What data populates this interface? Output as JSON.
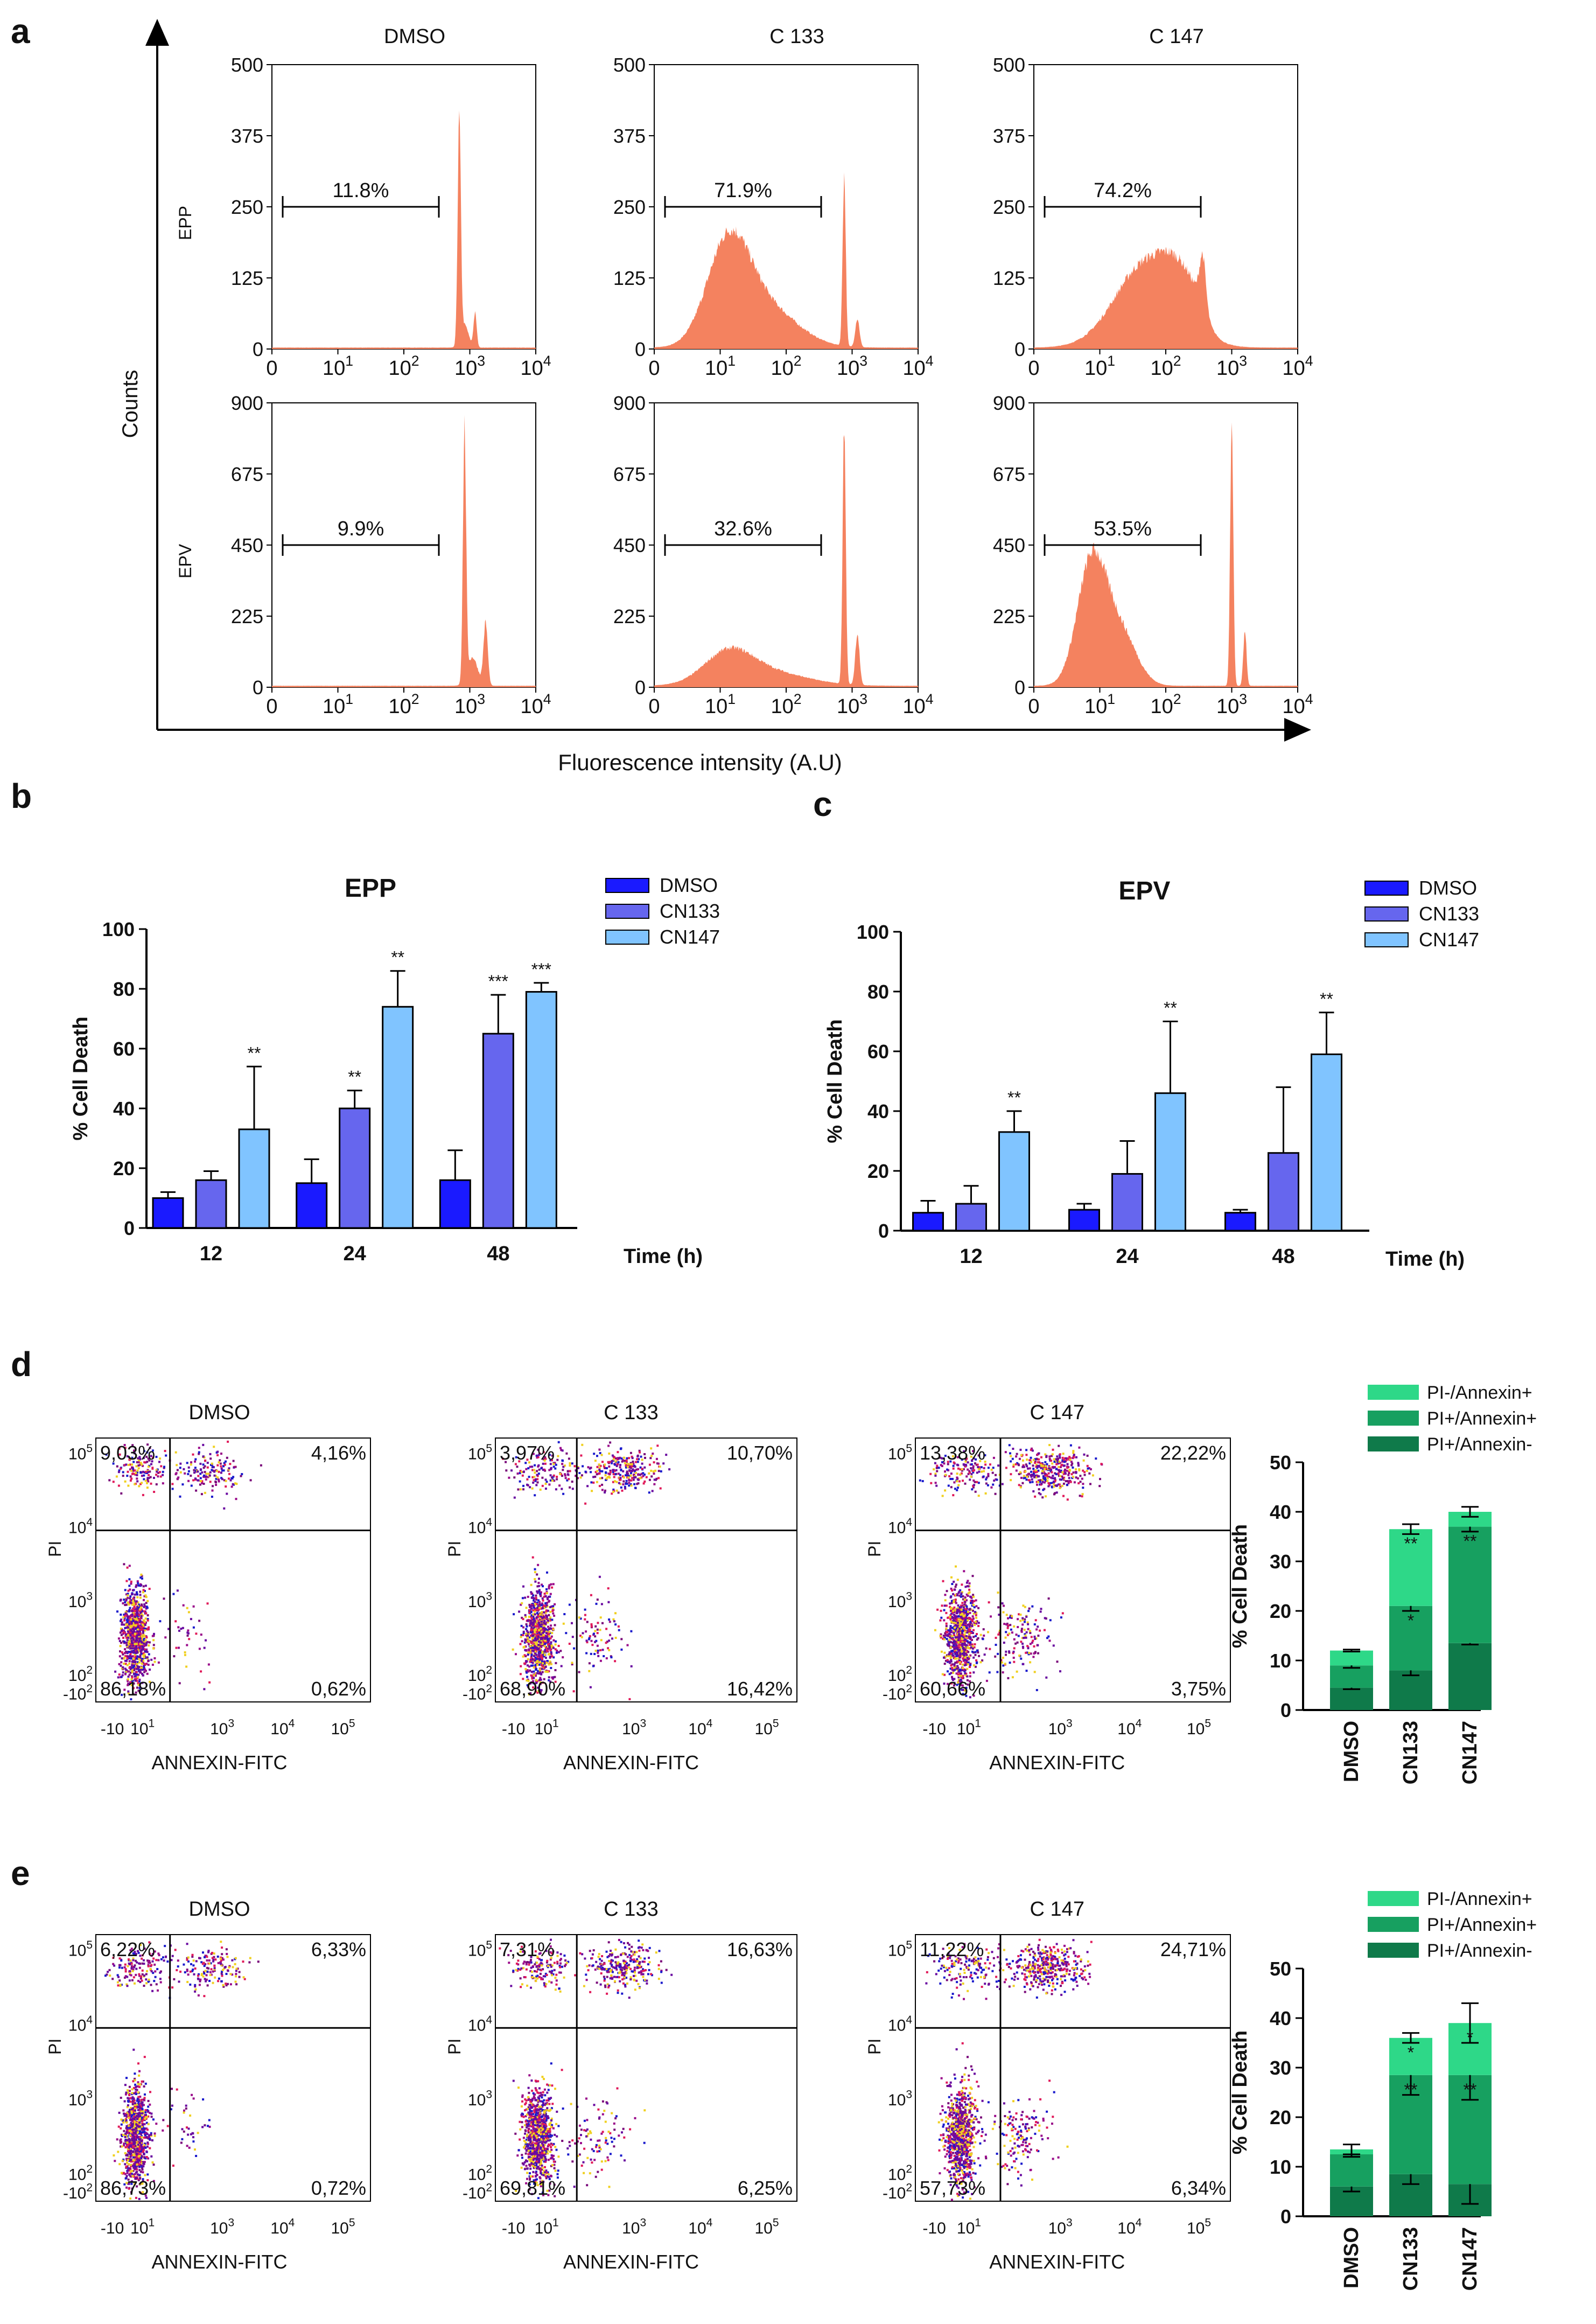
{
  "panel_letters": [
    "a",
    "b",
    "c",
    "d",
    "e"
  ],
  "panel_a": {
    "counts_label": "Counts",
    "fluorescence_label": "Fluorescence intensity (A.U)",
    "row_labels": [
      "EPP",
      "EPV"
    ],
    "col_titles": [
      "DMSO",
      "C 133",
      "C 147"
    ],
    "x_ticks": [
      {
        "base": "0",
        "exp": ""
      },
      {
        "base": "10",
        "exp": "1"
      },
      {
        "base": "10",
        "exp": "2"
      },
      {
        "base": "10",
        "exp": "3"
      },
      {
        "base": "10",
        "exp": "4"
      }
    ],
    "y_ticks_epp": [
      "0",
      "125",
      "250",
      "375",
      "500"
    ],
    "y_ticks_epv": [
      "0",
      "225",
      "450",
      "675",
      "900"
    ],
    "gates_epp": [
      "11.8%",
      "71.9%",
      "74.2%"
    ],
    "gates_epv": [
      "9.9%",
      "32.6%",
      "53.5%"
    ],
    "histogram_color": "#f4825f"
  },
  "chart_data": [
    {
      "type": "bar",
      "panel": "b",
      "title": "EPP",
      "xlabel": "Time (h)",
      "ylabel": "% Cell Death",
      "categories": [
        "12",
        "24",
        "48"
      ],
      "ylim": [
        0,
        100
      ],
      "yticks": [
        "0",
        "20",
        "40",
        "60",
        "80",
        "100"
      ],
      "series": [
        {
          "name": "DMSO",
          "color": "#1a1aff",
          "values": [
            10,
            15,
            16
          ],
          "errors": [
            2,
            8,
            10
          ],
          "sig": [
            "",
            "",
            ""
          ]
        },
        {
          "name": "CN133",
          "color": "#6666ee",
          "values": [
            16,
            40,
            65
          ],
          "errors": [
            3,
            6,
            13
          ],
          "sig": [
            "",
            "**",
            "***"
          ]
        },
        {
          "name": "CN147",
          "color": "#80c4ff",
          "values": [
            33,
            74,
            79
          ],
          "errors": [
            21,
            12,
            3
          ],
          "sig": [
            "**",
            "**",
            "***"
          ]
        }
      ]
    },
    {
      "type": "bar",
      "panel": "c",
      "title": "EPV",
      "xlabel": "Time (h)",
      "ylabel": "% Cell Death",
      "categories": [
        "12",
        "24",
        "48"
      ],
      "ylim": [
        0,
        100
      ],
      "yticks": [
        "0",
        "20",
        "40",
        "60",
        "80",
        "100"
      ],
      "series": [
        {
          "name": "DMSO",
          "color": "#1a1aff",
          "values": [
            6,
            7,
            6
          ],
          "errors": [
            4,
            2,
            1
          ],
          "sig": [
            "",
            "",
            ""
          ]
        },
        {
          "name": "CN133",
          "color": "#6666ee",
          "values": [
            9,
            19,
            26
          ],
          "errors": [
            6,
            11,
            22
          ],
          "sig": [
            "",
            "",
            ""
          ]
        },
        {
          "name": "CN147",
          "color": "#80c4ff",
          "values": [
            33,
            46,
            59
          ],
          "errors": [
            7,
            24,
            14
          ],
          "sig": [
            "**",
            "**",
            "**"
          ]
        }
      ]
    },
    {
      "type": "bar",
      "panel": "d",
      "stacked": true,
      "ylabel": "% Cell Death",
      "categories": [
        "DMSO",
        "CN133",
        "CN147"
      ],
      "ylim": [
        0,
        50
      ],
      "yticks": [
        "0",
        "10",
        "20",
        "30",
        "40",
        "50"
      ],
      "series": [
        {
          "name": "PI+/Annexin-",
          "color": "#0f7a4a",
          "values": [
            4.5,
            8,
            13.5
          ],
          "errors": [
            0.3,
            1,
            0.3
          ],
          "sig": [
            "",
            "",
            ""
          ]
        },
        {
          "name": "PI+/Annexin+",
          "color": "#17a060",
          "values": [
            4.5,
            13,
            23.5
          ],
          "errors": [
            0.5,
            1,
            1
          ],
          "sig": [
            "",
            "*",
            "**"
          ]
        },
        {
          "name": "PI-/Annexin+",
          "color": "#2ed888",
          "values": [
            3,
            15.5,
            3
          ],
          "errors": [
            0.2,
            1,
            1
          ],
          "sig": [
            "",
            "**",
            ""
          ]
        }
      ]
    },
    {
      "type": "bar",
      "panel": "e",
      "stacked": true,
      "ylabel": "% Cell Death",
      "categories": [
        "DMSO",
        "CN133",
        "CN147"
      ],
      "ylim": [
        0,
        50
      ],
      "yticks": [
        "0",
        "10",
        "20",
        "30",
        "40",
        "50"
      ],
      "series": [
        {
          "name": "PI+/Annexin-",
          "color": "#0f7a4a",
          "values": [
            6,
            8.5,
            6.5
          ],
          "errors": [
            1,
            2,
            4
          ],
          "sig": [
            "",
            "",
            ""
          ]
        },
        {
          "name": "PI+/Annexin+",
          "color": "#17a060",
          "values": [
            6.5,
            20,
            22
          ],
          "errors": [
            0.5,
            4,
            5
          ],
          "sig": [
            "",
            "**",
            "**"
          ]
        },
        {
          "name": "PI-/Annexin+",
          "color": "#2ed888",
          "values": [
            1,
            7.5,
            10.5
          ],
          "errors": [
            1,
            1,
            4
          ],
          "sig": [
            "",
            "*",
            "*"
          ]
        }
      ]
    }
  ],
  "panel_d": {
    "titles": [
      "DMSO",
      "C 133",
      "C 147"
    ],
    "quadrants": [
      [
        "9,03%",
        "4,16%",
        "86,18%",
        "0,62%"
      ],
      [
        "3,97%",
        "10,70%",
        "68,90%",
        "16,42%"
      ],
      [
        "13,38%",
        "22,22%",
        "60,66%",
        "3,75%"
      ]
    ]
  },
  "panel_e": {
    "titles": [
      "DMSO",
      "C 133",
      "C 147"
    ],
    "quadrants": [
      [
        "6,22%",
        "6,33%",
        "86,73%",
        "0,72%"
      ],
      [
        "7,31%",
        "16,63%",
        "69,81%",
        "6,25%"
      ],
      [
        "11,22%",
        "24,71%",
        "57,73%",
        "6,34%"
      ]
    ]
  },
  "flow_axes": {
    "x_label": "ANNEXIN-FITC",
    "y_label": "PI",
    "x_ticks": [
      {
        "base": "-10",
        "exp": ""
      },
      {
        "base": "10",
        "exp": "1"
      },
      {
        "base": "10",
        "exp": "3"
      },
      {
        "base": "10",
        "exp": "4"
      },
      {
        "base": "10",
        "exp": "5"
      }
    ],
    "y_ticks": [
      {
        "base": "-10",
        "exp": "2"
      },
      {
        "base": "10",
        "exp": "2"
      },
      {
        "base": "10",
        "exp": "3"
      },
      {
        "base": "10",
        "exp": "4"
      },
      {
        "base": "10",
        "exp": "5"
      }
    ]
  }
}
